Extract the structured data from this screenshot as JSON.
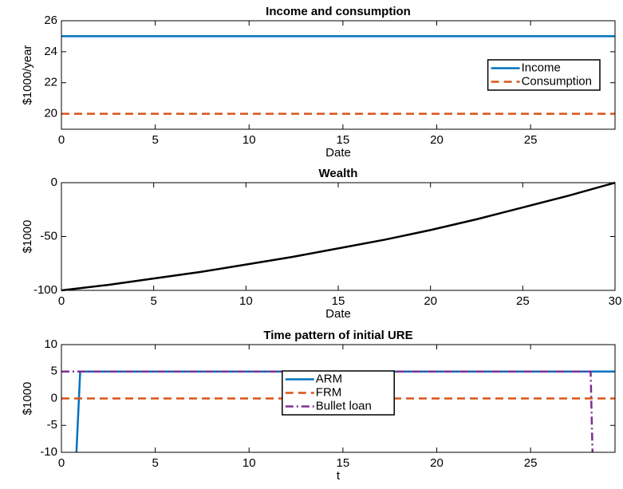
{
  "chart_data": [
    {
      "type": "line",
      "title": "Income and consumption",
      "x_label": "Date",
      "y_label": "$1000/year",
      "xlim": [
        0,
        29.5
      ],
      "xticks": [
        0,
        5,
        10,
        15,
        20,
        25
      ],
      "ylim": [
        19,
        26
      ],
      "yticks": [
        20,
        22,
        24,
        26
      ],
      "legend": "east",
      "series": [
        {
          "name": "Income",
          "color": "#0072bd",
          "linestyle": "solid",
          "x": [
            0,
            29.5
          ],
          "values": [
            25,
            25
          ]
        },
        {
          "name": "Consumption",
          "color": "#d95319",
          "linestyle": "dashed",
          "x": [
            0,
            29.5
          ],
          "values": [
            20,
            20
          ]
        }
      ]
    },
    {
      "type": "line",
      "title": "Wealth",
      "x_label": "Date",
      "y_label": "$1000",
      "xlim": [
        0,
        30
      ],
      "xticks": [
        0,
        5,
        10,
        15,
        20,
        25,
        30
      ],
      "ylim": [
        -100,
        0
      ],
      "yticks": [
        -100,
        -50,
        0
      ],
      "series": [
        {
          "color": "#000000",
          "linestyle": "solid",
          "x": [
            0,
            2.5,
            5,
            7.5,
            10,
            12.5,
            15,
            17.5,
            20,
            22.5,
            25,
            27.5,
            30
          ],
          "values": [
            -100,
            -95,
            -89,
            -83,
            -76,
            -69,
            -61,
            -53,
            -44,
            -34,
            -23,
            -12,
            0
          ]
        }
      ]
    },
    {
      "type": "line",
      "title": "Time pattern of initial URE",
      "x_label": "t",
      "y_label": "$1000",
      "xlim": [
        0,
        29.5
      ],
      "xticks": [
        0,
        5,
        10,
        15,
        20,
        25
      ],
      "ylim": [
        -10,
        10
      ],
      "yticks": [
        -10,
        -5,
        0,
        5,
        10
      ],
      "legend": "south",
      "series": [
        {
          "name": "ARM",
          "color": "#0072bd",
          "linestyle": "solid",
          "x": [
            0.8,
            1,
            29.5
          ],
          "values": [
            -10,
            5,
            5
          ]
        },
        {
          "name": "FRM",
          "color": "#d95319",
          "linestyle": "dashed",
          "x": [
            0,
            29.5
          ],
          "values": [
            0,
            0
          ]
        },
        {
          "name": "Bullet loan",
          "color": "#7e2f8e",
          "linestyle": "dashdot",
          "x": [
            0,
            28.2,
            28.3
          ],
          "values": [
            5,
            5,
            -10
          ]
        }
      ]
    }
  ]
}
